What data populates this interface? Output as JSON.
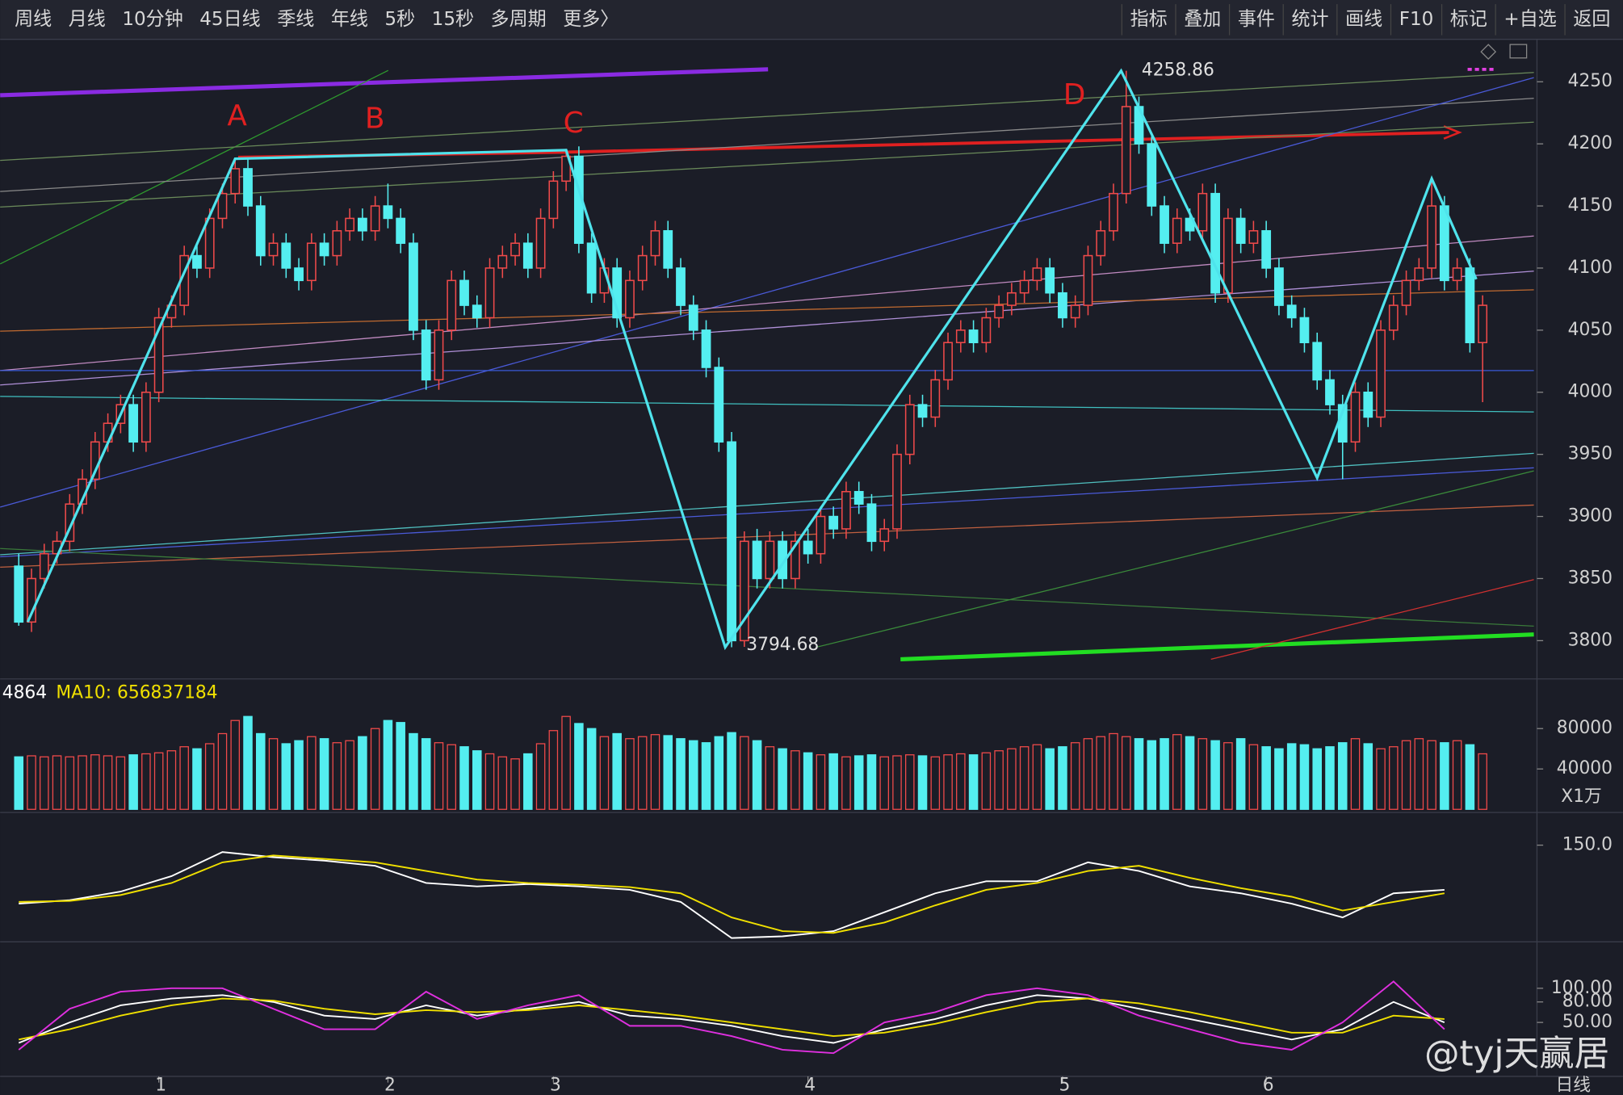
{
  "toolbar": {
    "left": [
      "周线",
      "月线",
      "10分钟",
      "45日线",
      "季线",
      "年线",
      "5秒",
      "15秒",
      "多周期",
      "更多〉"
    ],
    "right": [
      "指标",
      "叠加",
      "事件",
      "统计",
      "画线",
      "F10",
      "标记",
      "+自选",
      "返回"
    ]
  },
  "period_label": "日线",
  "watermark": "@tyj天赢居",
  "chart_data": [
    {
      "type": "candlestick",
      "up_color": "#f04a4a",
      "down_color": "#54eef0",
      "ylim": [
        3770,
        4282.5
      ],
      "yticks": [
        3800,
        3850,
        3900,
        3950,
        4000,
        4050,
        4100,
        4150,
        4200,
        4250
      ],
      "xticks": [
        {
          "value": 11,
          "label": "1"
        },
        {
          "value": 29,
          "label": "2"
        },
        {
          "value": 42,
          "label": "3"
        },
        {
          "value": 62,
          "label": "4"
        },
        {
          "value": 82,
          "label": "5"
        },
        {
          "value": 98,
          "label": "6"
        }
      ],
      "annotations": [
        "A",
        "B",
        "C",
        "D"
      ],
      "zigzag": {
        "color": "#4fe3ec",
        "x": [
          0.7,
          17,
          43,
          55.5,
          86.6,
          102,
          111,
          114.5
        ],
        "values": [
          3815,
          4188,
          4195,
          3794.68,
          4258.86,
          3931,
          4172,
          4091
        ]
      },
      "candles": [
        [
          3860,
          3870,
          3812,
          3815
        ],
        [
          3815,
          3858,
          3807,
          3850
        ],
        [
          3850,
          3878,
          3842,
          3870
        ],
        [
          3870,
          3888,
          3862,
          3880
        ],
        [
          3880,
          3918,
          3872,
          3910
        ],
        [
          3910,
          3938,
          3902,
          3930
        ],
        [
          3930,
          3968,
          3922,
          3960
        ],
        [
          3960,
          3983,
          3952,
          3975
        ],
        [
          3975,
          3998,
          3967,
          3990
        ],
        [
          3990,
          3998,
          3952,
          3960
        ],
        [
          3960,
          4008,
          3952,
          4000
        ],
        [
          4000,
          4068,
          3992,
          4060
        ],
        [
          4060,
          4078,
          4052,
          4070
        ],
        [
          4070,
          4118,
          4062,
          4110
        ],
        [
          4110,
          4118,
          4092,
          4100
        ],
        [
          4100,
          4148,
          4092,
          4140
        ],
        [
          4140,
          4168,
          4132,
          4160
        ],
        [
          4160,
          4188,
          4152,
          4180
        ],
        [
          4180,
          4188,
          4142,
          4150
        ],
        [
          4150,
          4158,
          4102,
          4110
        ],
        [
          4110,
          4128,
          4102,
          4120
        ],
        [
          4120,
          4128,
          4092,
          4100
        ],
        [
          4100,
          4108,
          4082,
          4090
        ],
        [
          4090,
          4128,
          4082,
          4120
        ],
        [
          4120,
          4128,
          4102,
          4110
        ],
        [
          4110,
          4138,
          4102,
          4130
        ],
        [
          4130,
          4148,
          4122,
          4140
        ],
        [
          4140,
          4148,
          4122,
          4130
        ],
        [
          4130,
          4158,
          4122,
          4150
        ],
        [
          4150,
          4168,
          4132,
          4140
        ],
        [
          4140,
          4148,
          4112,
          4120
        ],
        [
          4120,
          4128,
          4042,
          4050
        ],
        [
          4050,
          4058,
          4002,
          4010
        ],
        [
          4010,
          4058,
          4002,
          4050
        ],
        [
          4050,
          4098,
          4042,
          4090
        ],
        [
          4090,
          4098,
          4062,
          4070
        ],
        [
          4070,
          4078,
          4052,
          4060
        ],
        [
          4060,
          4108,
          4052,
          4100
        ],
        [
          4100,
          4118,
          4092,
          4110
        ],
        [
          4110,
          4128,
          4102,
          4120
        ],
        [
          4120,
          4128,
          4092,
          4100
        ],
        [
          4100,
          4148,
          4092,
          4140
        ],
        [
          4140,
          4178,
          4132,
          4170
        ],
        [
          4170,
          4196,
          4162,
          4190
        ],
        [
          4190,
          4198,
          4112,
          4120
        ],
        [
          4120,
          4128,
          4072,
          4080
        ],
        [
          4080,
          4108,
          4072,
          4100
        ],
        [
          4100,
          4108,
          4052,
          4060
        ],
        [
          4060,
          4098,
          4052,
          4090
        ],
        [
          4090,
          4118,
          4082,
          4110
        ],
        [
          4110,
          4138,
          4102,
          4130
        ],
        [
          4130,
          4138,
          4092,
          4100
        ],
        [
          4100,
          4108,
          4062,
          4070
        ],
        [
          4070,
          4078,
          4042,
          4050
        ],
        [
          4050,
          4058,
          4012,
          4020
        ],
        [
          4020,
          4028,
          3952,
          3960
        ],
        [
          3960,
          3968,
          3794.68,
          3800
        ],
        [
          3800,
          3888,
          3795,
          3880
        ],
        [
          3880,
          3890,
          3842,
          3850
        ],
        [
          3850,
          3888,
          3842,
          3880
        ],
        [
          3880,
          3888,
          3842,
          3850
        ],
        [
          3850,
          3888,
          3842,
          3880
        ],
        [
          3880,
          3890,
          3862,
          3870
        ],
        [
          3870,
          3908,
          3862,
          3900
        ],
        [
          3900,
          3908,
          3882,
          3890
        ],
        [
          3890,
          3928,
          3882,
          3920
        ],
        [
          3920,
          3928,
          3902,
          3910
        ],
        [
          3910,
          3918,
          3872,
          3880
        ],
        [
          3880,
          3898,
          3872,
          3890
        ],
        [
          3890,
          3958,
          3882,
          3950
        ],
        [
          3950,
          3998,
          3942,
          3990
        ],
        [
          3990,
          3998,
          3972,
          3980
        ],
        [
          3980,
          4018,
          3972,
          4010
        ],
        [
          4010,
          4048,
          4002,
          4040
        ],
        [
          4040,
          4058,
          4032,
          4050
        ],
        [
          4050,
          4058,
          4032,
          4040
        ],
        [
          4040,
          4068,
          4032,
          4060
        ],
        [
          4060,
          4078,
          4052,
          4070
        ],
        [
          4070,
          4088,
          4062,
          4080
        ],
        [
          4080,
          4098,
          4072,
          4090
        ],
        [
          4090,
          4108,
          4082,
          4100
        ],
        [
          4100,
          4108,
          4072,
          4080
        ],
        [
          4080,
          4088,
          4052,
          4060
        ],
        [
          4060,
          4078,
          4052,
          4070
        ],
        [
          4070,
          4118,
          4062,
          4110
        ],
        [
          4110,
          4138,
          4102,
          4130
        ],
        [
          4130,
          4168,
          4122,
          4160
        ],
        [
          4160,
          4258.86,
          4152,
          4230
        ],
        [
          4230,
          4238,
          4192,
          4200
        ],
        [
          4200,
          4208,
          4142,
          4150
        ],
        [
          4150,
          4158,
          4112,
          4120
        ],
        [
          4120,
          4148,
          4112,
          4140
        ],
        [
          4140,
          4148,
          4122,
          4130
        ],
        [
          4130,
          4168,
          4122,
          4160
        ],
        [
          4160,
          4168,
          4072,
          4080
        ],
        [
          4080,
          4148,
          4072,
          4140
        ],
        [
          4140,
          4148,
          4112,
          4120
        ],
        [
          4120,
          4138,
          4112,
          4130
        ],
        [
          4130,
          4138,
          4092,
          4100
        ],
        [
          4100,
          4108,
          4062,
          4070
        ],
        [
          4070,
          4078,
          4052,
          4060
        ],
        [
          4060,
          4068,
          4032,
          4040
        ],
        [
          4040,
          4048,
          4002,
          4010
        ],
        [
          4010,
          4018,
          3982,
          3990
        ],
        [
          3990,
          3998,
          3930,
          3960
        ],
        [
          3960,
          4008,
          3952,
          4000
        ],
        [
          4000,
          4008,
          3972,
          3980
        ],
        [
          3980,
          4058,
          3972,
          4050
        ],
        [
          4050,
          4078,
          4042,
          4070
        ],
        [
          4070,
          4098,
          4062,
          4090
        ],
        [
          4090,
          4108,
          4082,
          4100
        ],
        [
          4100,
          4172,
          4092,
          4150
        ],
        [
          4150,
          4158,
          4082,
          4090
        ],
        [
          4090,
          4108,
          4082,
          4100
        ],
        [
          4100,
          4108,
          4032,
          4040
        ],
        [
          4040,
          4078,
          3992,
          4070
        ]
      ]
    },
    {
      "type": "bar",
      "legend_texts": [
        "4864",
        "MA10: 656837184"
      ],
      "unit_label": "X1万",
      "ylim": [
        0,
        123000
      ],
      "yticks": [
        40000,
        80000
      ],
      "values": [
        52000,
        53000,
        52000,
        53000,
        52000,
        53000,
        54000,
        53000,
        52000,
        54000,
        55000,
        56000,
        58000,
        62000,
        60000,
        65000,
        75000,
        88000,
        92000,
        75000,
        70000,
        65000,
        68000,
        72000,
        70000,
        66000,
        68000,
        72000,
        80000,
        88000,
        86000,
        75000,
        70000,
        66000,
        64000,
        62000,
        58000,
        55000,
        52000,
        50000,
        55000,
        65000,
        78000,
        92000,
        85000,
        80000,
        72000,
        75000,
        70000,
        72000,
        74000,
        73000,
        70000,
        68000,
        66000,
        72000,
        76000,
        72000,
        68000,
        62000,
        60000,
        58000,
        56000,
        54000,
        55000,
        52000,
        53000,
        54000,
        52000,
        53000,
        54000,
        53000,
        52000,
        54000,
        55000,
        54000,
        56000,
        58000,
        60000,
        62000,
        64000,
        60000,
        62000,
        66000,
        70000,
        72000,
        75000,
        72000,
        70000,
        68000,
        70000,
        74000,
        72000,
        70000,
        68000,
        66000,
        70000,
        64000,
        62000,
        60000,
        65000,
        64000,
        60000,
        62000,
        66000,
        70000,
        65000,
        60000,
        62000,
        68000,
        70000,
        68000,
        66000,
        68000,
        64000,
        55000
      ]
    },
    {
      "type": "line",
      "ylim": [
        -125,
        230
      ],
      "yticks": [
        {
          "value": 150,
          "label": "150.0"
        }
      ],
      "x": [
        0,
        4,
        8,
        12,
        16,
        20,
        24,
        28,
        32,
        36,
        40,
        44,
        48,
        52,
        56,
        60,
        64,
        68,
        72,
        76,
        80,
        84,
        88,
        92,
        96,
        100,
        104,
        108,
        112
      ],
      "series": [
        {
          "color": "#ffffff",
          "values": [
            -20,
            -10,
            15,
            60,
            130,
            115,
            105,
            90,
            40,
            30,
            37,
            30,
            20,
            -15,
            -120,
            -115,
            -100,
            -45,
            10,
            45,
            45,
            100,
            75,
            30,
            10,
            -20,
            -60,
            10,
            20
          ]
        },
        {
          "color": "#f0e000",
          "values": [
            -15,
            -12,
            5,
            40,
            100,
            120,
            110,
            100,
            75,
            50,
            40,
            35,
            28,
            10,
            -60,
            -100,
            -105,
            -75,
            -25,
            20,
            40,
            75,
            90,
            55,
            25,
            0,
            -40,
            -15,
            10
          ]
        }
      ]
    },
    {
      "type": "line",
      "ylim": [
        -29,
        165
      ],
      "yticks": [
        {
          "value": 100,
          "label": "100.00"
        },
        {
          "value": 80,
          "label": "80.00"
        },
        {
          "value": 50,
          "label": "50.00"
        }
      ],
      "x": [
        0,
        4,
        8,
        12,
        16,
        20,
        24,
        28,
        32,
        36,
        40,
        44,
        48,
        52,
        56,
        60,
        64,
        68,
        72,
        76,
        80,
        84,
        88,
        92,
        96,
        100,
        104,
        108,
        112
      ],
      "series": [
        {
          "color": "#ffffff",
          "values": [
            20,
            50,
            75,
            85,
            90,
            80,
            60,
            55,
            75,
            60,
            70,
            80,
            60,
            55,
            45,
            30,
            20,
            40,
            55,
            75,
            90,
            85,
            70,
            55,
            40,
            25,
            40,
            80,
            50
          ]
        },
        {
          "color": "#f0e000",
          "values": [
            25,
            40,
            60,
            75,
            85,
            82,
            70,
            62,
            68,
            65,
            68,
            75,
            68,
            60,
            50,
            40,
            30,
            35,
            48,
            65,
            80,
            85,
            78,
            65,
            50,
            35,
            35,
            60,
            55
          ]
        },
        {
          "color": "#e030e0",
          "values": [
            10,
            70,
            95,
            100,
            100,
            70,
            40,
            40,
            95,
            55,
            75,
            90,
            45,
            45,
            30,
            10,
            5,
            50,
            65,
            90,
            100,
            90,
            60,
            40,
            20,
            10,
            50,
            110,
            40
          ]
        }
      ]
    }
  ]
}
